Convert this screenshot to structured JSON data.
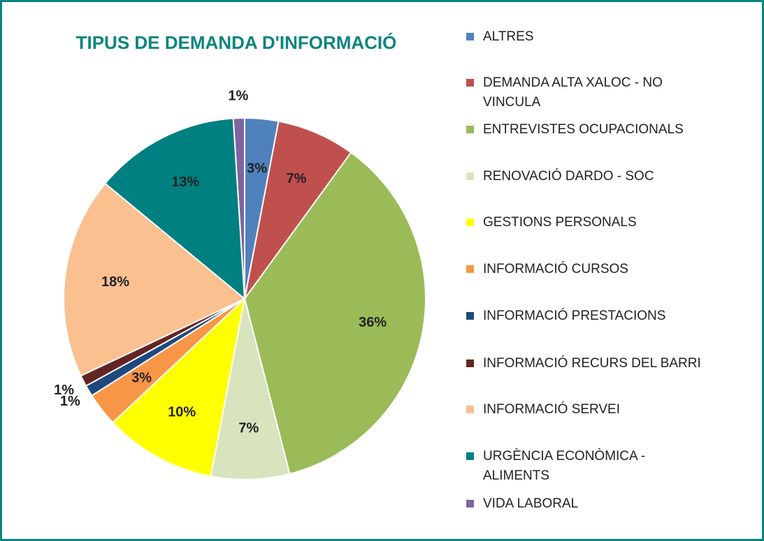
{
  "chart_data": {
    "type": "pie",
    "title": "TIPUS DE DEMANDA D'INFORMACIÓ",
    "categories": [
      "ALTRES",
      "DEMANDA ALTA XALOC - NO VINCULA",
      "ENTREVISTES OCUPACIONALS",
      "RENOVACIÓ DARDO - SOC",
      "GESTIONS PERSONALS",
      "INFORMACIÓ CURSOS",
      "INFORMACIÓ PRESTACIONS",
      "INFORMACIÓ RECURS DEL BARRI",
      "INFORMACIÓ SERVEI",
      "URGÈNCIA ECONÒMICA - ALIMENTS",
      "VIDA LABORAL"
    ],
    "values": [
      3,
      7,
      36,
      7,
      10,
      3,
      1,
      1,
      18,
      13,
      1
    ],
    "value_labels": [
      "3%",
      "7%",
      "36%",
      "7%",
      "10%",
      "3%",
      "1%",
      "1%",
      "18%",
      "13%",
      "1%"
    ],
    "colors": [
      "#4f81bd",
      "#c0504d",
      "#9bbb59",
      "#d7e4bd",
      "#ffff00",
      "#f79646",
      "#1f497d",
      "#632523",
      "#fac090",
      "#008080",
      "#8064a2"
    ],
    "legend": "right"
  }
}
